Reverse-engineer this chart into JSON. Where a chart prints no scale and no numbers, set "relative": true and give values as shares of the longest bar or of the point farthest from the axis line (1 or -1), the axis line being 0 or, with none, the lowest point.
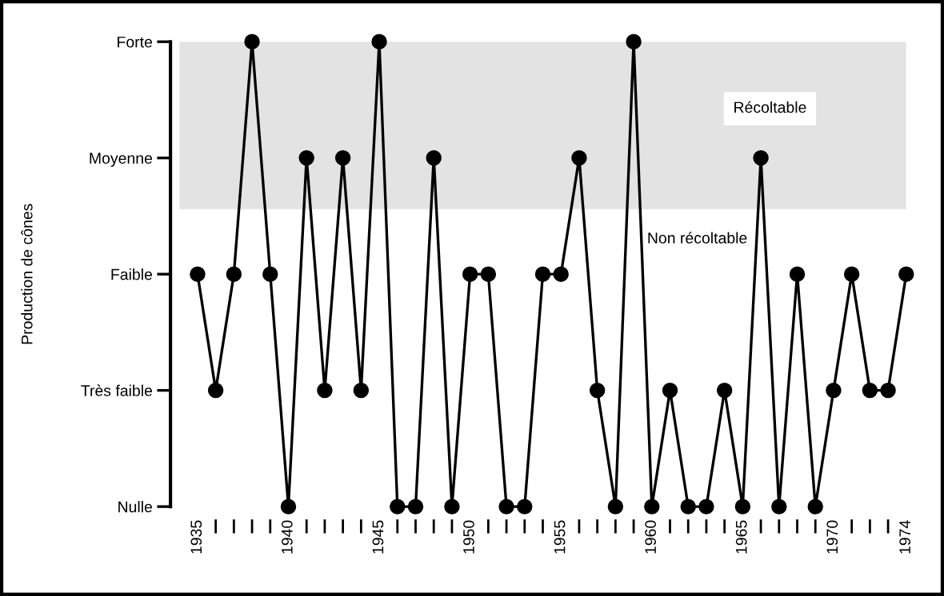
{
  "chart_data": {
    "type": "line",
    "x": [
      1935,
      1936,
      1937,
      1938,
      1939,
      1940,
      1941,
      1942,
      1943,
      1944,
      1945,
      1946,
      1947,
      1948,
      1949,
      1950,
      1951,
      1952,
      1953,
      1954,
      1955,
      1956,
      1957,
      1958,
      1959,
      1960,
      1961,
      1962,
      1963,
      1964,
      1965,
      1966,
      1967,
      1968,
      1969,
      1970,
      1971,
      1972,
      1973,
      1974
    ],
    "series": [
      {
        "color": "#000000",
        "values": [
          0.5,
          0.25,
          0.5,
          1,
          0.5,
          0,
          0.75,
          0.25,
          0.75,
          0.25,
          1,
          0,
          0,
          0.75,
          0,
          0.5,
          0.5,
          0,
          0,
          0.5,
          0.5,
          0.75,
          0.25,
          0,
          1,
          0,
          0.25,
          0,
          0,
          0.25,
          0,
          0.75,
          0,
          0.5,
          0,
          0.25,
          0.5,
          0.25,
          0.25,
          0.5
        ]
      }
    ],
    "relative": true,
    "marker": "circle",
    "line_style": "solid",
    "xlim": [
      1934,
      1974
    ],
    "xticks": [
      1935,
      {
        "value": 1936,
        "label": null
      },
      {
        "value": 1937,
        "label": null
      },
      {
        "value": 1938,
        "label": null
      },
      {
        "value": 1939,
        "label": null
      },
      1940,
      {
        "value": 1941,
        "label": null
      },
      {
        "value": 1942,
        "label": null
      },
      {
        "value": 1943,
        "label": null
      },
      {
        "value": 1944,
        "label": null
      },
      1945,
      {
        "value": 1946,
        "label": null
      },
      {
        "value": 1947,
        "label": null
      },
      {
        "value": 1948,
        "label": null
      },
      {
        "value": 1949,
        "label": null
      },
      1950,
      {
        "value": 1951,
        "label": null
      },
      {
        "value": 1952,
        "label": null
      },
      {
        "value": 1953,
        "label": null
      },
      {
        "value": 1954,
        "label": null
      },
      1955,
      {
        "value": 1956,
        "label": null
      },
      {
        "value": 1957,
        "label": null
      },
      {
        "value": 1958,
        "label": null
      },
      {
        "value": 1959,
        "label": null
      },
      1960,
      {
        "value": 1961,
        "label": null
      },
      {
        "value": 1962,
        "label": null
      },
      {
        "value": 1963,
        "label": null
      },
      {
        "value": 1964,
        "label": null
      },
      1965,
      {
        "value": 1966,
        "label": null
      },
      {
        "value": 1967,
        "label": null
      },
      {
        "value": 1968,
        "label": null
      },
      {
        "value": 1969,
        "label": null
      },
      1970,
      {
        "value": 1971,
        "label": null
      },
      {
        "value": 1972,
        "label": null
      },
      {
        "value": 1973,
        "label": null
      },
      1974
    ],
    "bands": [
      {
        "axis": "y",
        "from": 0.64,
        "to": 1,
        "label": "Récoltable",
        "color": "#e3e3e3"
      }
    ],
    "annotations": [
      "Nulle",
      "Très faible",
      "Faible",
      "Moyenne",
      "Forte",
      "Non récoltable",
      "Production de cônes"
    ],
    "grid": false,
    "legend": false
  }
}
